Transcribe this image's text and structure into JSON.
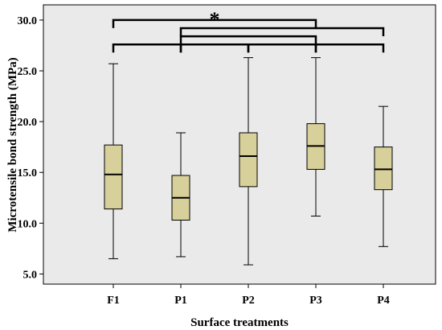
{
  "chart_data": {
    "type": "boxplot",
    "xlabel": "Surface treatments",
    "ylabel": "Microtensile bond strength (MPa)",
    "ylim": [
      4.0,
      31.5
    ],
    "yticks": [
      "5.0",
      "10.0",
      "15.0",
      "20.0",
      "25.0",
      "30.0"
    ],
    "ytick_values": [
      5,
      10,
      15,
      20,
      25,
      30
    ],
    "categories": [
      "F1",
      "P1",
      "P2",
      "P3",
      "P4"
    ],
    "boxes": [
      {
        "category": "F1",
        "min": 6.5,
        "q1": 11.4,
        "median": 14.8,
        "q3": 17.7,
        "max": 25.7
      },
      {
        "category": "P1",
        "min": 6.7,
        "q1": 10.3,
        "median": 12.5,
        "q3": 14.7,
        "max": 18.9
      },
      {
        "category": "P2",
        "min": 5.9,
        "q1": 13.6,
        "median": 16.6,
        "q3": 18.9,
        "max": 26.3
      },
      {
        "category": "P3",
        "min": 10.7,
        "q1": 15.3,
        "median": 17.6,
        "q3": 19.8,
        "max": 26.3
      },
      {
        "category": "P4",
        "min": 7.7,
        "q1": 13.3,
        "median": 15.3,
        "q3": 17.5,
        "max": 21.5
      }
    ],
    "significance": [
      {
        "from": "F1",
        "to": "P3",
        "level": 30.0,
        "label": "*"
      },
      {
        "from": "P1",
        "to": "P4",
        "level": 29.2,
        "label": ""
      },
      {
        "from": "P1",
        "to": "P3",
        "level": 28.4,
        "label": ""
      },
      {
        "from": "F1",
        "to": "P1",
        "level": 27.6,
        "label": ""
      },
      {
        "from": "P1",
        "to": "P2",
        "level": 27.6,
        "label": ""
      },
      {
        "from": "P2",
        "to": "P3",
        "level": 27.6,
        "label": ""
      },
      {
        "from": "P3",
        "to": "P4",
        "level": 27.6,
        "label": ""
      }
    ],
    "grid": false,
    "colors": {
      "plot_background": "#eaeaea",
      "box_fill": "#d8d09b",
      "stroke": "#000000"
    }
  }
}
